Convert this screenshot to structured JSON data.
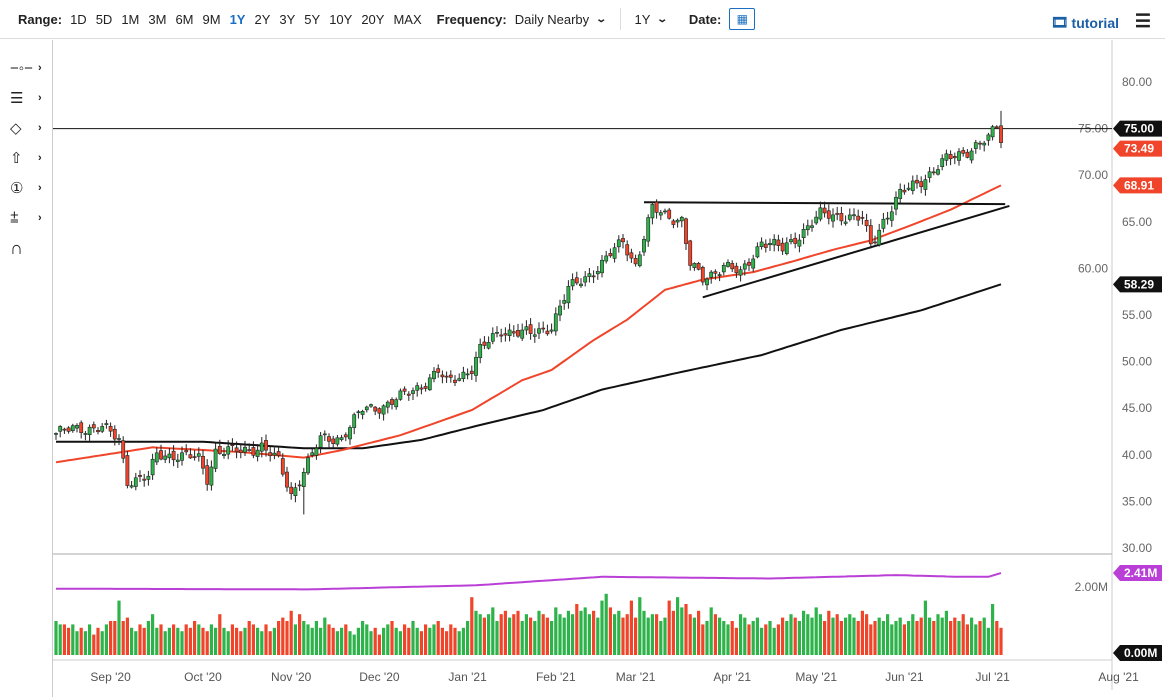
{
  "toolbar": {
    "range_label": "Range:",
    "ranges": [
      "1D",
      "5D",
      "1M",
      "3M",
      "6M",
      "9M",
      "1Y",
      "2Y",
      "3Y",
      "5Y",
      "10Y",
      "20Y",
      "MAX"
    ],
    "active_range": "1Y",
    "frequency_label": "Frequency:",
    "frequency_value": "Daily Nearby",
    "period_value": "1Y",
    "date_label": "Date:",
    "tutorial_label": "tutorial"
  },
  "sidebar_tools": [
    "line-tool-icon",
    "fibonacci-tool-icon",
    "shape-tool-icon",
    "arrow-tool-icon",
    "annotation-number-icon",
    "measure-tool-icon",
    "magnet-icon"
  ],
  "colors": {
    "up": "#2db34a",
    "down": "#f0452a",
    "ma50": "#f0452a",
    "ma200": "#111111",
    "avg_volume": "#b93fd6",
    "tag_black": "#111111",
    "tag_red": "#f0452a"
  },
  "chart_data": {
    "type": "candlestick",
    "title": "",
    "x_ticks": [
      {
        "label": "Sep '20",
        "day": 13
      },
      {
        "label": "Oct '20",
        "day": 35
      },
      {
        "label": "Nov '20",
        "day": 56
      },
      {
        "label": "Dec '20",
        "day": 77
      },
      {
        "label": "Jan '21",
        "day": 98
      },
      {
        "label": "Feb '21",
        "day": 119
      },
      {
        "label": "Mar '21",
        "day": 138
      },
      {
        "label": "Apr '21",
        "day": 161
      },
      {
        "label": "May '21",
        "day": 181
      },
      {
        "label": "Jun '21",
        "day": 202
      },
      {
        "label": "Jul '21",
        "day": 223
      },
      {
        "label": "Aug '21",
        "day": 253
      }
    ],
    "y_ticks": [
      "80.00",
      "75.00",
      "70.00",
      "65.00",
      "60.00",
      "55.00",
      "50.00",
      "45.00",
      "40.00",
      "35.00",
      "30.00"
    ],
    "ylim": [
      30,
      80
    ],
    "close_anchors": [
      [
        0,
        42.3
      ],
      [
        6,
        42.9
      ],
      [
        11,
        42.9
      ],
      [
        15,
        41.6
      ],
      [
        17,
        37.3
      ],
      [
        22,
        37.5
      ],
      [
        24,
        40
      ],
      [
        29,
        40
      ],
      [
        34,
        39.5
      ],
      [
        36,
        37.5
      ],
      [
        38,
        40.5
      ],
      [
        44,
        40.3
      ],
      [
        49,
        41
      ],
      [
        53,
        39.2
      ],
      [
        56,
        35.7
      ],
      [
        59,
        38.4
      ],
      [
        63,
        41.6
      ],
      [
        68,
        41.9
      ],
      [
        73,
        44.8
      ],
      [
        78,
        45.3
      ],
      [
        82,
        46.1
      ],
      [
        87,
        47.5
      ],
      [
        91,
        48.9
      ],
      [
        93,
        47.7
      ],
      [
        99,
        49.3
      ],
      [
        101,
        51.2
      ],
      [
        106,
        53.4
      ],
      [
        113,
        52.9
      ],
      [
        118,
        53.9
      ],
      [
        122,
        57.7
      ],
      [
        125,
        58.8
      ],
      [
        130,
        60.4
      ],
      [
        135,
        63
      ],
      [
        138,
        60.4
      ],
      [
        142,
        66.3
      ],
      [
        145,
        65.8
      ],
      [
        149,
        65.2
      ],
      [
        151,
        60.4
      ],
      [
        154,
        58.8
      ],
      [
        159,
        60.4
      ],
      [
        163,
        59.3
      ],
      [
        168,
        63
      ],
      [
        173,
        62
      ],
      [
        178,
        64.1
      ],
      [
        182,
        65.7
      ],
      [
        187,
        65.7
      ],
      [
        192,
        65.2
      ],
      [
        194,
        62.5
      ],
      [
        197,
        65.2
      ],
      [
        201,
        67.9
      ],
      [
        206,
        69.5
      ],
      [
        212,
        71.6
      ],
      [
        217,
        72.7
      ],
      [
        222,
        73.8
      ],
      [
        224,
        75.3
      ]
    ],
    "last_candle": {
      "open": 75.3,
      "high": 76.9,
      "low": 72.9,
      "close": 73.49
    },
    "ma50": [
      [
        0,
        39.2
      ],
      [
        23,
        40.8
      ],
      [
        44,
        40.3
      ],
      [
        59,
        39.7
      ],
      [
        68,
        40.5
      ],
      [
        82,
        42.1
      ],
      [
        99,
        44.8
      ],
      [
        111,
        48.0
      ],
      [
        118,
        49.1
      ],
      [
        128,
        52.3
      ],
      [
        136,
        54.5
      ],
      [
        145,
        57.7
      ],
      [
        154,
        58.8
      ],
      [
        166,
        59.6
      ],
      [
        175,
        60.7
      ],
      [
        185,
        62.0
      ],
      [
        194,
        63.0
      ],
      [
        204,
        64.7
      ],
      [
        213,
        66.3
      ],
      [
        225,
        68.91
      ]
    ],
    "ma200": [
      [
        0,
        41.4
      ],
      [
        35,
        41.4
      ],
      [
        59,
        40.7
      ],
      [
        73,
        40.7
      ],
      [
        87,
        41.6
      ],
      [
        101,
        43.2
      ],
      [
        116,
        44.8
      ],
      [
        130,
        47.0
      ],
      [
        149,
        48.9
      ],
      [
        168,
        50.7
      ],
      [
        187,
        53.4
      ],
      [
        206,
        55.5
      ],
      [
        225,
        58.29
      ]
    ],
    "trendlines": [
      {
        "name": "resistance",
        "points": [
          [
            140,
            67.1
          ],
          [
            226,
            66.9
          ]
        ]
      },
      {
        "name": "support",
        "points": [
          [
            154,
            56.9
          ],
          [
            227,
            66.7
          ]
        ]
      }
    ],
    "horizontal_line": 75.0,
    "price_tags": [
      {
        "value": "75.00",
        "price": 75.0,
        "color": "#111111"
      },
      {
        "value": "73.49",
        "price": 73.49,
        "color": "#f0452a"
      },
      {
        "value": "68.91",
        "price": 68.91,
        "color": "#f0452a"
      },
      {
        "value": "58.29",
        "price": 58.29,
        "color": "#111111"
      }
    ],
    "volume": {
      "y_ticks": [
        "2.00M"
      ],
      "tags": [
        {
          "value": "2.41M",
          "level": 2.41,
          "color": "#b93fd6"
        },
        {
          "value": "0.00M",
          "level": 0,
          "color": "#111111"
        }
      ],
      "values_millions": [
        1.0,
        0.9,
        0.9,
        0.8,
        0.9,
        0.7,
        0.8,
        0.7,
        0.9,
        0.6,
        0.8,
        0.7,
        0.9,
        1.0,
        1.0,
        1.6,
        1.0,
        1.1,
        0.8,
        0.7,
        0.9,
        0.8,
        1.0,
        1.2,
        0.8,
        0.9,
        0.7,
        0.8,
        0.9,
        0.8,
        0.7,
        0.9,
        0.8,
        1.0,
        0.9,
        0.8,
        0.7,
        0.9,
        0.8,
        1.2,
        0.8,
        0.7,
        0.9,
        0.8,
        0.7,
        0.8,
        1.0,
        0.9,
        0.8,
        0.7,
        0.9,
        0.7,
        0.8,
        1.0,
        1.1,
        1.0,
        1.3,
        0.9,
        1.2,
        1.0,
        0.9,
        0.8,
        1.0,
        0.8,
        1.1,
        0.9,
        0.8,
        0.7,
        0.8,
        0.9,
        0.7,
        0.6,
        0.8,
        1.0,
        0.9,
        0.7,
        0.8,
        0.6,
        0.8,
        0.9,
        1.0,
        0.8,
        0.7,
        0.9,
        0.8,
        1.0,
        0.8,
        0.7,
        0.9,
        0.8,
        0.9,
        1.0,
        0.8,
        0.7,
        0.9,
        0.8,
        0.7,
        0.8,
        1.0,
        1.7,
        1.3,
        1.2,
        1.1,
        1.2,
        1.4,
        1.0,
        1.2,
        1.3,
        1.1,
        1.2,
        1.3,
        1.0,
        1.2,
        1.1,
        1.0,
        1.3,
        1.2,
        1.1,
        1.0,
        1.4,
        1.2,
        1.1,
        1.3,
        1.2,
        1.5,
        1.3,
        1.4,
        1.2,
        1.3,
        1.1,
        1.6,
        1.8,
        1.4,
        1.2,
        1.3,
        1.1,
        1.2,
        1.6,
        1.1,
        1.7,
        1.3,
        1.1,
        1.2,
        1.2,
        1.0,
        1.1,
        1.6,
        1.3,
        1.7,
        1.4,
        1.5,
        1.2,
        1.1,
        1.3,
        0.9,
        1.0,
        1.4,
        1.2,
        1.1,
        1.0,
        0.9,
        1.0,
        0.8,
        1.2,
        1.1,
        0.9,
        1.0,
        1.1,
        0.8,
        0.9,
        1.0,
        0.8,
        0.9,
        1.1,
        1.0,
        1.2,
        1.1,
        1.0,
        1.3,
        1.2,
        1.1,
        1.4,
        1.2,
        1.0,
        1.3,
        1.1,
        1.2,
        1.0,
        1.1,
        1.2,
        1.1,
        1.0,
        1.3,
        1.2,
        0.9,
        1.0,
        1.1,
        1.0,
        1.2,
        0.9,
        1.0,
        1.1,
        0.9,
        1.0,
        1.2,
        1.0,
        1.1,
        1.6,
        1.1,
        1.0,
        1.2,
        1.1,
        1.3,
        1.0,
        1.1,
        1.0,
        1.2,
        0.9,
        1.1,
        0.9,
        1.0,
        1.1,
        0.8,
        1.5,
        1.0,
        0.8
      ],
      "avg_line": [
        [
          0,
          1.95
        ],
        [
          60,
          1.93
        ],
        [
          100,
          2.05
        ],
        [
          130,
          2.3
        ],
        [
          170,
          2.25
        ],
        [
          200,
          2.35
        ],
        [
          215,
          2.3
        ],
        [
          222,
          2.3
        ],
        [
          225,
          2.41
        ]
      ]
    }
  }
}
